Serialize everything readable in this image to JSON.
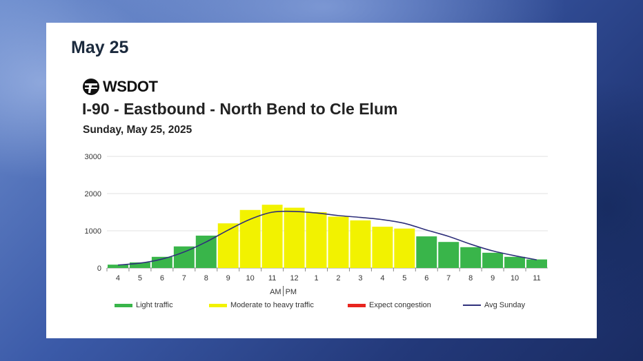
{
  "header": {
    "date_title": "May 25"
  },
  "logo": {
    "text": "WSDOT",
    "icon": "wsdot-ferry-logo-icon"
  },
  "chart_title": "I-90 - Eastbound - North Bend to Cle Elum",
  "chart_subtitle": "Sunday, May 25, 2025",
  "legend": [
    {
      "label": "Light traffic",
      "color": "#39b54a"
    },
    {
      "label": "Moderate to heavy traffic",
      "color": "#f2f200"
    },
    {
      "label": "Expect congestion",
      "color": "#e8251f"
    },
    {
      "label": "Avg Sunday",
      "color": "#2e2f7a"
    }
  ],
  "chart_data": {
    "type": "bar",
    "categories": [
      "4",
      "5",
      "6",
      "7",
      "8",
      "9",
      "10",
      "11",
      "12",
      "1",
      "2",
      "3",
      "4",
      "5",
      "6",
      "7",
      "8",
      "9",
      "10",
      "11"
    ],
    "values": [
      90,
      150,
      300,
      580,
      870,
      1200,
      1560,
      1700,
      1620,
      1500,
      1380,
      1280,
      1110,
      1060,
      850,
      700,
      560,
      410,
      300,
      230
    ],
    "bar_levels": [
      "light",
      "light",
      "light",
      "light",
      "light",
      "moderate",
      "moderate",
      "moderate",
      "moderate",
      "moderate",
      "moderate",
      "moderate",
      "moderate",
      "moderate",
      "light",
      "light",
      "light",
      "light",
      "light",
      "light"
    ],
    "avg_line": {
      "name": "Avg Sunday",
      "values": [
        80,
        130,
        240,
        430,
        700,
        1020,
        1310,
        1500,
        1520,
        1480,
        1410,
        1360,
        1300,
        1200,
        1020,
        850,
        640,
        460,
        330,
        220
      ]
    },
    "y_ticks": [
      0,
      1000,
      2000,
      3000
    ],
    "ylim": [
      0,
      3000
    ],
    "ampm_label": {
      "am": "AM",
      "pm": "PM"
    },
    "grid": true,
    "legend_position": "bottom"
  }
}
